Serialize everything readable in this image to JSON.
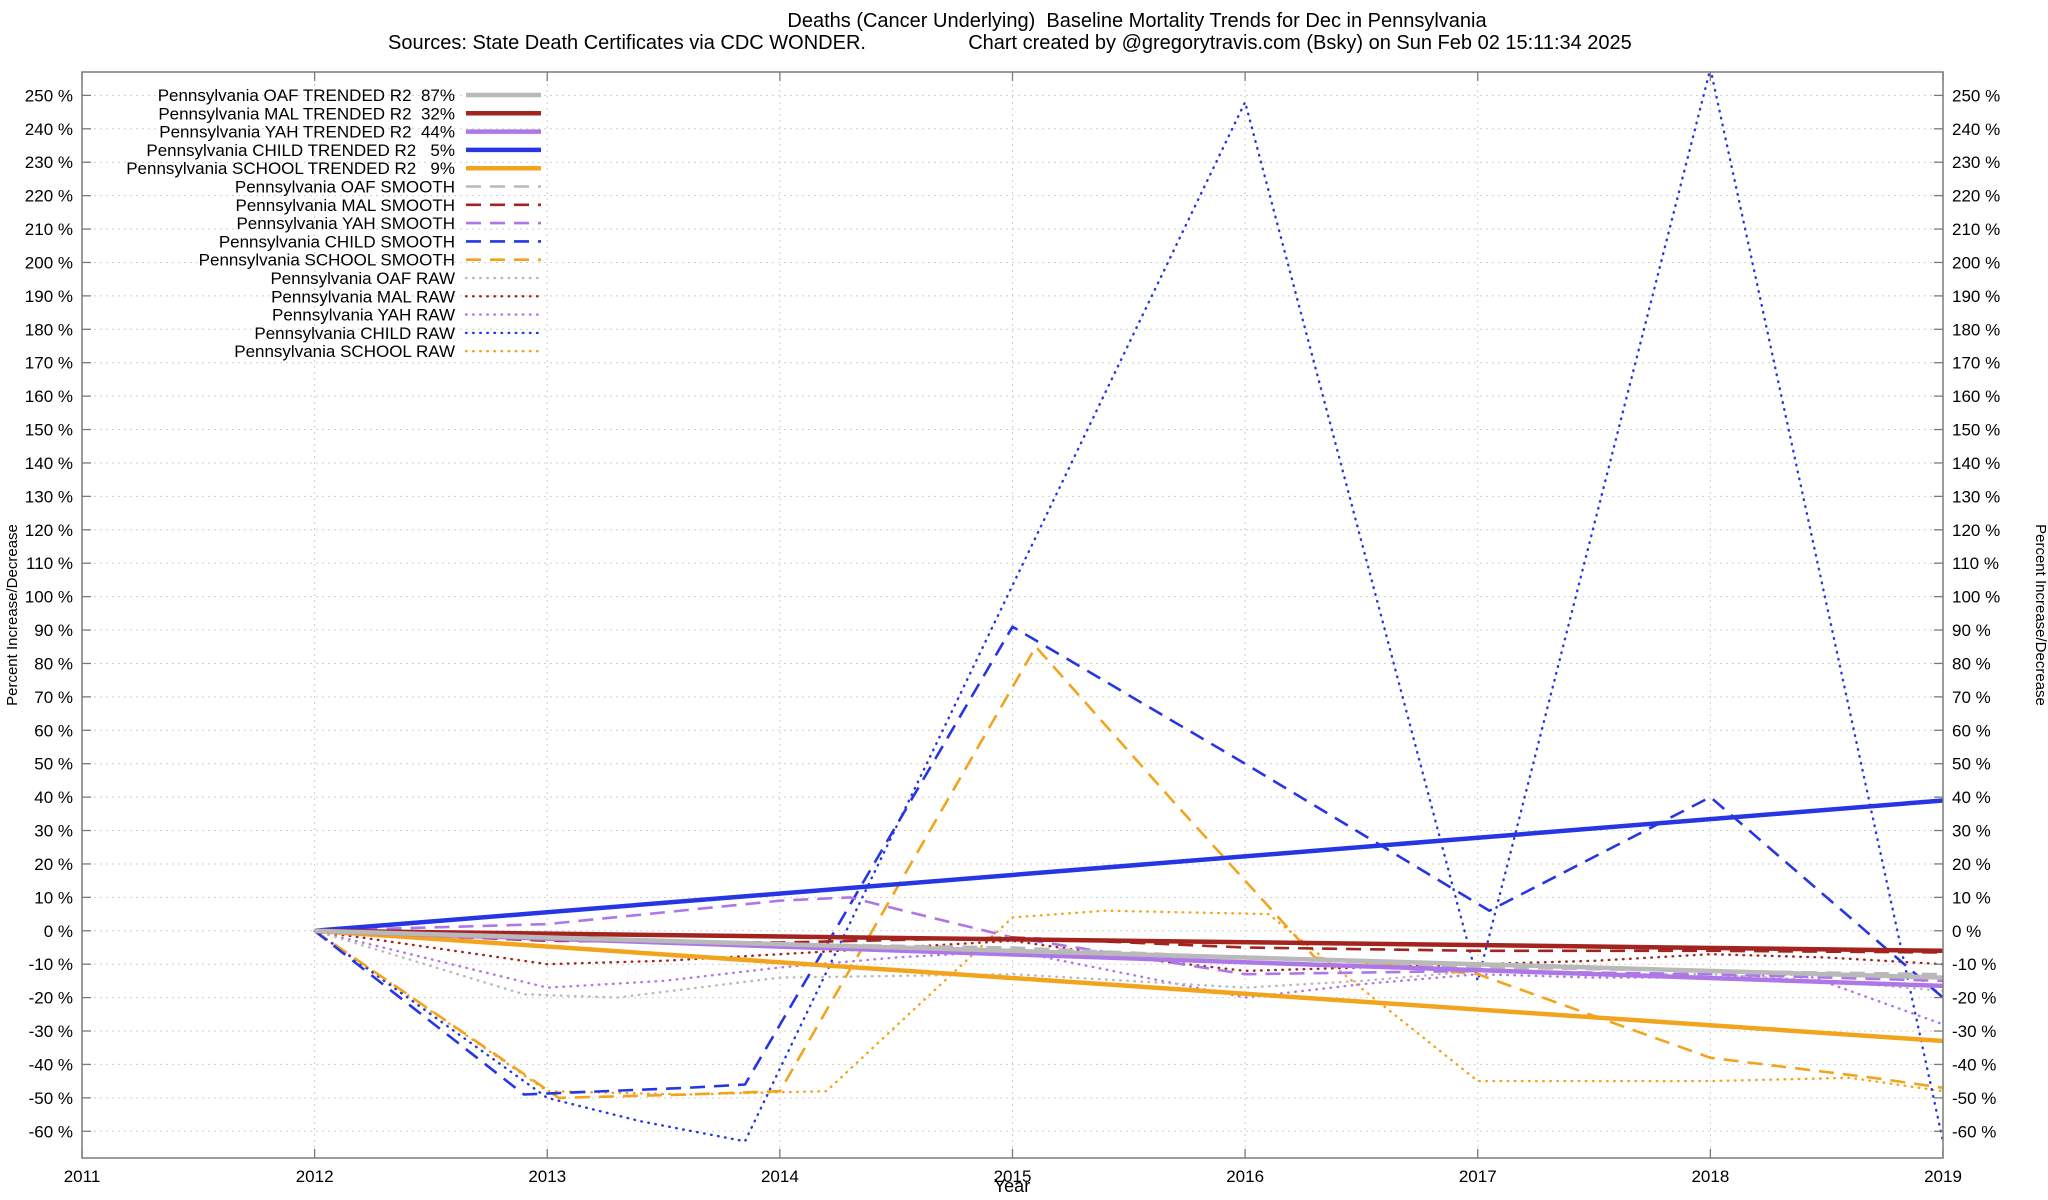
{
  "header": {
    "title": "Deaths (Cancer Underlying)  Baseline Mortality Trends for Dec in Pennsylvania",
    "source_note": "Sources: State Death Certificates via CDC WONDER.",
    "credit_note": "Chart created by @gregorytravis.com (Bsky) on Sun Feb 02 15:11:34 2025"
  },
  "axes": {
    "x_label": "Year",
    "y_label_left": "Percent Increase/Decrease",
    "y_label_right": "Percent Increase/Decrease"
  },
  "chart_data": {
    "type": "line",
    "title": "Deaths (Cancer Underlying)  Baseline Mortality Trends for Dec in Pennsylvania",
    "xlabel": "Year",
    "ylabel": "Percent Increase/Decrease",
    "xlim": [
      2011,
      2019
    ],
    "ylim": [
      -68,
      257
    ],
    "x_ticks": [
      2011,
      2012,
      2013,
      2014,
      2015,
      2016,
      2017,
      2018,
      2019
    ],
    "y_ticks": {
      "min": -60,
      "max": 250,
      "step": 10,
      "suffix": " %"
    },
    "grid": true,
    "grid_color": "#cfcfcf",
    "border_color": "#7a7a7a",
    "legend_position": "top-left",
    "colors": {
      "OAF": "#b9b9b9",
      "MAL": "#a3231e",
      "YAH": "#ae77e8",
      "CHILD": "#2636e3",
      "SCHOOL": "#f2a41c"
    },
    "series": [
      {
        "name": "Pennsylvania OAF TRENDED R2  87%",
        "group": "OAF",
        "style": "trended",
        "points": [
          [
            2012,
            0
          ],
          [
            2019,
            -14
          ]
        ]
      },
      {
        "name": "Pennsylvania MAL TRENDED R2  32%",
        "group": "MAL",
        "style": "trended",
        "points": [
          [
            2012,
            0
          ],
          [
            2019,
            -6
          ]
        ]
      },
      {
        "name": "Pennsylvania YAH TRENDED R2  44%",
        "group": "YAH",
        "style": "trended",
        "points": [
          [
            2012,
            0
          ],
          [
            2019,
            -16.5
          ]
        ]
      },
      {
        "name": "Pennsylvania CHILD TRENDED R2   5%",
        "group": "CHILD",
        "style": "trended",
        "points": [
          [
            2012,
            0
          ],
          [
            2019,
            39
          ]
        ]
      },
      {
        "name": "Pennsylvania SCHOOL TRENDED R2   9%",
        "group": "SCHOOL",
        "style": "trended",
        "points": [
          [
            2012,
            0
          ],
          [
            2019,
            -33
          ]
        ]
      },
      {
        "name": "Pennsylvania OAF SMOOTH",
        "group": "OAF",
        "style": "smooth",
        "points": [
          [
            2012,
            0
          ],
          [
            2013,
            -2
          ],
          [
            2014,
            -4
          ],
          [
            2015,
            -5
          ],
          [
            2016,
            -8
          ],
          [
            2017,
            -11
          ],
          [
            2018,
            -12
          ],
          [
            2019,
            -13
          ]
        ]
      },
      {
        "name": "Pennsylvania MAL SMOOTH",
        "group": "MAL",
        "style": "smooth",
        "points": [
          [
            2012,
            0
          ],
          [
            2013,
            -3
          ],
          [
            2014,
            -3.5
          ],
          [
            2015,
            -2
          ],
          [
            2016,
            -5
          ],
          [
            2017,
            -6
          ],
          [
            2018,
            -6
          ],
          [
            2019,
            -6.5
          ]
        ]
      },
      {
        "name": "Pennsylvania YAH SMOOTH",
        "group": "YAH",
        "style": "smooth",
        "points": [
          [
            2012,
            0
          ],
          [
            2013,
            2
          ],
          [
            2014,
            9
          ],
          [
            2014.3,
            10
          ],
          [
            2015,
            -2
          ],
          [
            2016,
            -13
          ],
          [
            2017,
            -12
          ],
          [
            2018,
            -13
          ],
          [
            2019,
            -15
          ]
        ]
      },
      {
        "name": "Pennsylvania CHILD SMOOTH",
        "group": "CHILD",
        "style": "smooth",
        "points": [
          [
            2012,
            0
          ],
          [
            2012.9,
            -49
          ],
          [
            2013.6,
            -47
          ],
          [
            2013.85,
            -46
          ],
          [
            2015,
            91
          ],
          [
            2016,
            50
          ],
          [
            2017.05,
            6
          ],
          [
            2018,
            40
          ],
          [
            2019,
            -20
          ]
        ]
      },
      {
        "name": "Pennsylvania SCHOOL SMOOTH",
        "group": "SCHOOL",
        "style": "smooth",
        "points": [
          [
            2012,
            0
          ],
          [
            2013.05,
            -50
          ],
          [
            2013.6,
            -49
          ],
          [
            2014,
            -48
          ],
          [
            2015.1,
            85
          ],
          [
            2015.7,
            38
          ],
          [
            2016.3,
            -8
          ],
          [
            2017,
            -13
          ],
          [
            2018,
            -38
          ],
          [
            2018.7,
            -44
          ],
          [
            2019,
            -47
          ]
        ]
      },
      {
        "name": "Pennsylvania OAF RAW",
        "group": "OAF",
        "style": "raw",
        "points": [
          [
            2012,
            0
          ],
          [
            2012.9,
            -19
          ],
          [
            2013.3,
            -20
          ],
          [
            2014,
            -14
          ],
          [
            2015,
            -13
          ],
          [
            2015.5,
            -15
          ],
          [
            2016,
            -17
          ],
          [
            2016.5,
            -15
          ],
          [
            2017,
            -12
          ],
          [
            2017.5,
            -13
          ],
          [
            2018,
            -13
          ],
          [
            2018.5,
            -15
          ],
          [
            2019,
            -18
          ]
        ]
      },
      {
        "name": "Pennsylvania MAL RAW",
        "group": "MAL",
        "style": "raw",
        "points": [
          [
            2012,
            0
          ],
          [
            2013,
            -10
          ],
          [
            2013.5,
            -9
          ],
          [
            2014,
            -7
          ],
          [
            2014.5,
            -5
          ],
          [
            2015,
            -3
          ],
          [
            2015.5,
            -8
          ],
          [
            2016,
            -12
          ],
          [
            2016.5,
            -11
          ],
          [
            2017,
            -10
          ],
          [
            2017.5,
            -9
          ],
          [
            2018,
            -7
          ],
          [
            2018.5,
            -8
          ],
          [
            2019,
            -10
          ]
        ]
      },
      {
        "name": "Pennsylvania YAH RAW",
        "group": "YAH",
        "style": "raw",
        "points": [
          [
            2012,
            0
          ],
          [
            2013,
            -17
          ],
          [
            2013.5,
            -15
          ],
          [
            2014,
            -11
          ],
          [
            2014.5,
            -8
          ],
          [
            2015,
            -6
          ],
          [
            2015.5,
            -13
          ],
          [
            2016,
            -20
          ],
          [
            2016.5,
            -16
          ],
          [
            2017,
            -13
          ],
          [
            2017.5,
            -14
          ],
          [
            2018,
            -14
          ],
          [
            2018.4,
            -13
          ],
          [
            2019,
            -28
          ]
        ]
      },
      {
        "name": "Pennsylvania CHILD RAW",
        "group": "CHILD",
        "style": "raw",
        "points": [
          [
            2012,
            0
          ],
          [
            2013,
            -50
          ],
          [
            2013.4,
            -57
          ],
          [
            2013.85,
            -63
          ],
          [
            2016,
            248
          ],
          [
            2017,
            -15
          ],
          [
            2018,
            258
          ],
          [
            2019,
            -63
          ]
        ]
      },
      {
        "name": "Pennsylvania SCHOOL RAW",
        "group": "SCHOOL",
        "style": "raw",
        "points": [
          [
            2012,
            0
          ],
          [
            2013,
            -48
          ],
          [
            2013.6,
            -49
          ],
          [
            2014.2,
            -48
          ],
          [
            2015,
            4
          ],
          [
            2015.4,
            6
          ],
          [
            2016.1,
            5
          ],
          [
            2017,
            -45
          ],
          [
            2018,
            -45
          ],
          [
            2018.6,
            -44
          ],
          [
            2019,
            -48
          ]
        ]
      }
    ]
  }
}
